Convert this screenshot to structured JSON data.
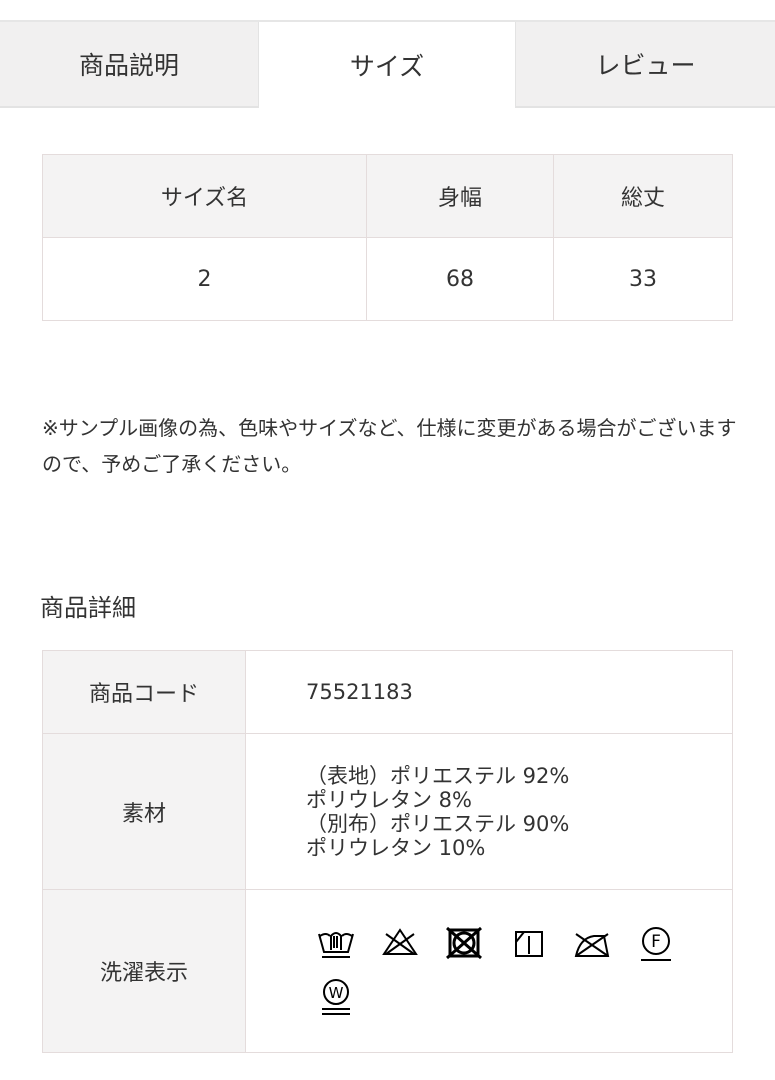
{
  "tabs": [
    {
      "label": "商品説明",
      "active": false
    },
    {
      "label": "サイズ",
      "active": true
    },
    {
      "label": "レビュー",
      "active": false
    }
  ],
  "size_table": {
    "headers": [
      "サイズ名",
      "身幅",
      "総丈"
    ],
    "rows": [
      [
        "2",
        "68",
        "33"
      ]
    ]
  },
  "note": "※サンプル画像の為、色味やサイズなど、仕様に変更がある場合がございますので、予めご了承ください。",
  "details": {
    "title": "商品詳細",
    "code_label": "商品コード",
    "code_value": "75521183",
    "material_label": "素材",
    "material_lines": [
      "（表地）ポリエステル 92%",
      "ポリウレタン 8%",
      "（別布）ポリエステル 90%",
      "ポリウレタン 10%"
    ],
    "care_label": "洗濯表示",
    "care_icons": [
      "hand-wash-icon",
      "no-bleach-icon",
      "no-tumble-dry-icon",
      "line-dry-shade-icon",
      "no-iron-icon",
      "dry-clean-f-icon",
      "wet-clean-w-icon"
    ],
    "care_letters": {
      "f": "F",
      "w": "W"
    }
  }
}
